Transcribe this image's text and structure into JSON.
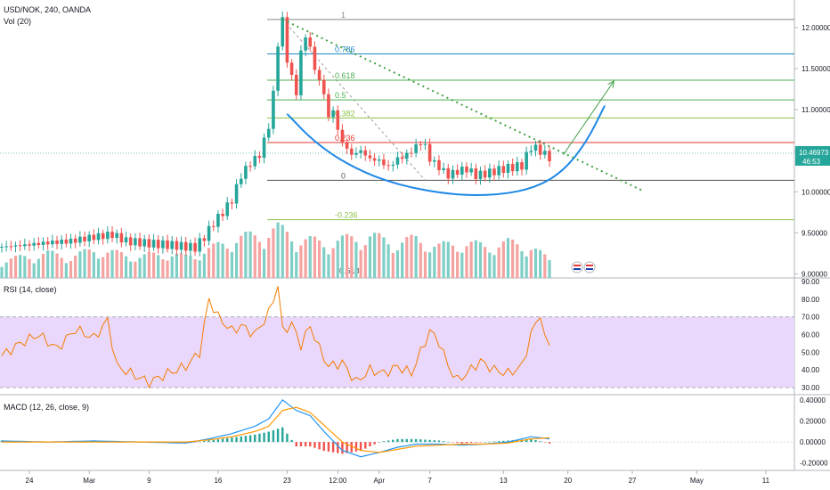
{
  "header": {
    "symbol_line": "USD/NOK, 240, OANDA",
    "volume_label": "Vol (20)"
  },
  "colors": {
    "up": "#26a69a",
    "down": "#ef5350",
    "vol_up": "#7fcfc6",
    "vol_down": "#f4a3a1",
    "fib_786": "#1e88c7",
    "fib_618": "#4caf50",
    "fib_05": "#4caf50",
    "fib_382": "#8bc34a",
    "fib_236": "#e53935",
    "fib_0": "#555555",
    "fib_neg236": "#8bc34a",
    "trendline": "#43a047",
    "cup": "#1e88e5",
    "rsi_line": "#f57c00",
    "rsi_band": "#e9d8fb",
    "macd_line": "#2196f3",
    "signal_line": "#ff9800",
    "last_price_bg": "#26a69a"
  },
  "chart_data": [
    {
      "type": "candlestick",
      "pane": "price",
      "x_ticks": [
        "24",
        "Mar",
        "9",
        "16",
        "23",
        "12:00",
        "Apr",
        "7",
        "13",
        "20",
        "27",
        "May",
        "11"
      ],
      "y_ticks": [
        "12.00000",
        "11.50000",
        "11.00000",
        "10.50000",
        "10.00000",
        "9.50000",
        "9.00000"
      ],
      "ylim": [
        8.95,
        12.25
      ],
      "last_price": "10.46973",
      "countdown": "46:53",
      "close_path": [
        [
          0,
          9.33
        ],
        [
          5,
          9.35
        ],
        [
          10,
          9.38
        ],
        [
          15,
          9.4
        ],
        [
          20,
          9.45
        ],
        [
          24,
          9.48
        ],
        [
          27,
          9.4
        ],
        [
          32,
          9.37
        ],
        [
          37,
          9.35
        ],
        [
          42,
          9.32
        ],
        [
          44,
          9.45
        ],
        [
          46,
          9.62
        ],
        [
          48,
          9.75
        ],
        [
          50,
          9.9
        ],
        [
          52,
          10.2
        ],
        [
          54,
          10.35
        ],
        [
          56,
          10.45
        ],
        [
          58,
          10.8
        ],
        [
          59,
          11.2
        ],
        [
          60,
          11.8
        ],
        [
          61,
          12.1
        ],
        [
          62,
          11.6
        ],
        [
          63,
          11.4
        ],
        [
          64,
          11.2
        ],
        [
          65,
          11.7
        ],
        [
          66,
          11.9
        ],
        [
          67,
          11.75
        ],
        [
          68,
          11.5
        ],
        [
          70,
          11.2
        ],
        [
          71,
          10.9
        ],
        [
          72,
          11.0
        ],
        [
          73,
          10.75
        ],
        [
          74,
          10.6
        ],
        [
          76,
          10.45
        ],
        [
          78,
          10.5
        ],
        [
          80,
          10.4
        ],
        [
          82,
          10.38
        ],
        [
          84,
          10.3
        ],
        [
          86,
          10.4
        ],
        [
          88,
          10.45
        ],
        [
          90,
          10.55
        ],
        [
          91,
          10.6
        ],
        [
          92,
          10.55
        ],
        [
          93,
          10.4
        ],
        [
          95,
          10.3
        ],
        [
          97,
          10.2
        ],
        [
          99,
          10.25
        ],
        [
          101,
          10.28
        ],
        [
          103,
          10.2
        ],
        [
          105,
          10.22
        ],
        [
          107,
          10.25
        ],
        [
          109,
          10.28
        ],
        [
          111,
          10.3
        ],
        [
          113,
          10.32
        ],
        [
          115,
          10.55
        ],
        [
          117,
          10.5
        ],
        [
          118,
          10.45
        ],
        [
          119,
          10.42
        ]
      ],
      "volume_path": [
        [
          0,
          0.25
        ],
        [
          5,
          0.3
        ],
        [
          10,
          0.35
        ],
        [
          15,
          0.3
        ],
        [
          20,
          0.4
        ],
        [
          25,
          0.35
        ],
        [
          30,
          0.3
        ],
        [
          35,
          0.35
        ],
        [
          40,
          0.3
        ],
        [
          45,
          0.4
        ],
        [
          50,
          0.55
        ],
        [
          55,
          0.6
        ],
        [
          60,
          0.7
        ],
        [
          65,
          0.55
        ],
        [
          70,
          0.5
        ],
        [
          75,
          0.55
        ],
        [
          80,
          0.6
        ],
        [
          85,
          0.5
        ],
        [
          90,
          0.55
        ],
        [
          95,
          0.45
        ],
        [
          100,
          0.5
        ],
        [
          105,
          0.45
        ],
        [
          110,
          0.5
        ],
        [
          115,
          0.45
        ],
        [
          119,
          0.25
        ]
      ],
      "fibonacci": [
        {
          "label": "1",
          "value": 12.1
        },
        {
          "label": "0.786",
          "value": 11.68
        },
        {
          "label": "0.618",
          "value": 11.36
        },
        {
          "label": "0.5",
          "value": 11.12
        },
        {
          "label": "0.382",
          "value": 10.9
        },
        {
          "label": "0.236",
          "value": 10.6
        },
        {
          "label": "0",
          "value": 10.14
        },
        {
          "label": "-0.236",
          "value": 9.66
        },
        {
          "label": "-0.618",
          "value": 8.98
        }
      ],
      "trendline": {
        "from": [
          61,
          12.1
        ],
        "to": [
          139,
          10.02
        ]
      },
      "projection_arrow": {
        "from": [
          122,
          10.45
        ],
        "to": [
          133,
          11.35
        ]
      },
      "cup_curve": [
        [
          62,
          10.95
        ],
        [
          68,
          10.6
        ],
        [
          76,
          10.3
        ],
        [
          86,
          10.08
        ],
        [
          98,
          9.96
        ],
        [
          108,
          9.96
        ],
        [
          116,
          10.05
        ],
        [
          122,
          10.25
        ],
        [
          127,
          10.6
        ],
        [
          131,
          11.05
        ]
      ],
      "markers": [
        "flag-icon",
        "flag-icon"
      ]
    },
    {
      "type": "line",
      "pane": "rsi",
      "title": "RSI (14, close)",
      "y_ticks": [
        "90.00",
        "80.00",
        "70.00",
        "60.00",
        "50.00",
        "40.00",
        "30.00"
      ],
      "ylim": [
        26,
        92
      ],
      "band": [
        30,
        70
      ],
      "series": [
        {
          "values_path": [
            [
              0,
              48
            ],
            [
              4,
              55
            ],
            [
              8,
              60
            ],
            [
              12,
              52
            ],
            [
              16,
              63
            ],
            [
              20,
              58
            ],
            [
              23,
              68
            ],
            [
              25,
              42
            ],
            [
              28,
              38
            ],
            [
              32,
              33
            ],
            [
              36,
              38
            ],
            [
              40,
              42
            ],
            [
              43,
              50
            ],
            [
              45,
              80
            ],
            [
              47,
              70
            ],
            [
              50,
              62
            ],
            [
              52,
              65
            ],
            [
              55,
              60
            ],
            [
              58,
              72
            ],
            [
              60,
              88
            ],
            [
              61,
              62
            ],
            [
              63,
              66
            ],
            [
              65,
              54
            ],
            [
              67,
              65
            ],
            [
              69,
              52
            ],
            [
              71,
              42
            ],
            [
              74,
              44
            ],
            [
              77,
              33
            ],
            [
              80,
              40
            ],
            [
              83,
              38
            ],
            [
              86,
              42
            ],
            [
              89,
              38
            ],
            [
              91,
              50
            ],
            [
              93,
              62
            ],
            [
              95,
              56
            ],
            [
              97,
              42
            ],
            [
              99,
              34
            ],
            [
              101,
              38
            ],
            [
              104,
              45
            ],
            [
              107,
              40
            ],
            [
              110,
              38
            ],
            [
              113,
              42
            ],
            [
              115,
              60
            ],
            [
              117,
              72
            ],
            [
              118,
              57
            ],
            [
              119,
              55
            ]
          ]
        }
      ]
    },
    {
      "type": "line",
      "pane": "macd",
      "title": "MACD (12, 26, close, 9)",
      "y_ticks": [
        "0.40000",
        "0.20000",
        "0.00000",
        "-0.20000"
      ],
      "ylim": [
        -0.27,
        0.45
      ],
      "series": [
        {
          "role": "macd",
          "values_path": [
            [
              0,
              0.01
            ],
            [
              10,
              0.0
            ],
            [
              20,
              0.01
            ],
            [
              30,
              0.0
            ],
            [
              40,
              -0.01
            ],
            [
              45,
              0.03
            ],
            [
              50,
              0.08
            ],
            [
              55,
              0.15
            ],
            [
              58,
              0.22
            ],
            [
              61,
              0.4
            ],
            [
              64,
              0.3
            ],
            [
              67,
              0.25
            ],
            [
              70,
              0.1
            ],
            [
              74,
              -0.08
            ],
            [
              78,
              -0.14
            ],
            [
              82,
              -0.1
            ],
            [
              86,
              -0.05
            ],
            [
              90,
              -0.02
            ],
            [
              95,
              -0.02
            ],
            [
              100,
              -0.03
            ],
            [
              105,
              -0.02
            ],
            [
              110,
              0.0
            ],
            [
              115,
              0.05
            ],
            [
              119,
              0.03
            ]
          ]
        },
        {
          "role": "signal",
          "values_path": [
            [
              0,
              0.0
            ],
            [
              10,
              0.0
            ],
            [
              20,
              0.0
            ],
            [
              30,
              0.0
            ],
            [
              40,
              0.0
            ],
            [
              45,
              0.02
            ],
            [
              50,
              0.05
            ],
            [
              55,
              0.1
            ],
            [
              58,
              0.15
            ],
            [
              61,
              0.3
            ],
            [
              64,
              0.33
            ],
            [
              67,
              0.28
            ],
            [
              70,
              0.16
            ],
            [
              74,
              0.0
            ],
            [
              78,
              -0.08
            ],
            [
              82,
              -0.1
            ],
            [
              86,
              -0.07
            ],
            [
              90,
              -0.04
            ],
            [
              95,
              -0.03
            ],
            [
              100,
              -0.02
            ],
            [
              105,
              -0.02
            ],
            [
              110,
              -0.01
            ],
            [
              115,
              0.03
            ],
            [
              119,
              0.04
            ]
          ]
        }
      ]
    }
  ]
}
